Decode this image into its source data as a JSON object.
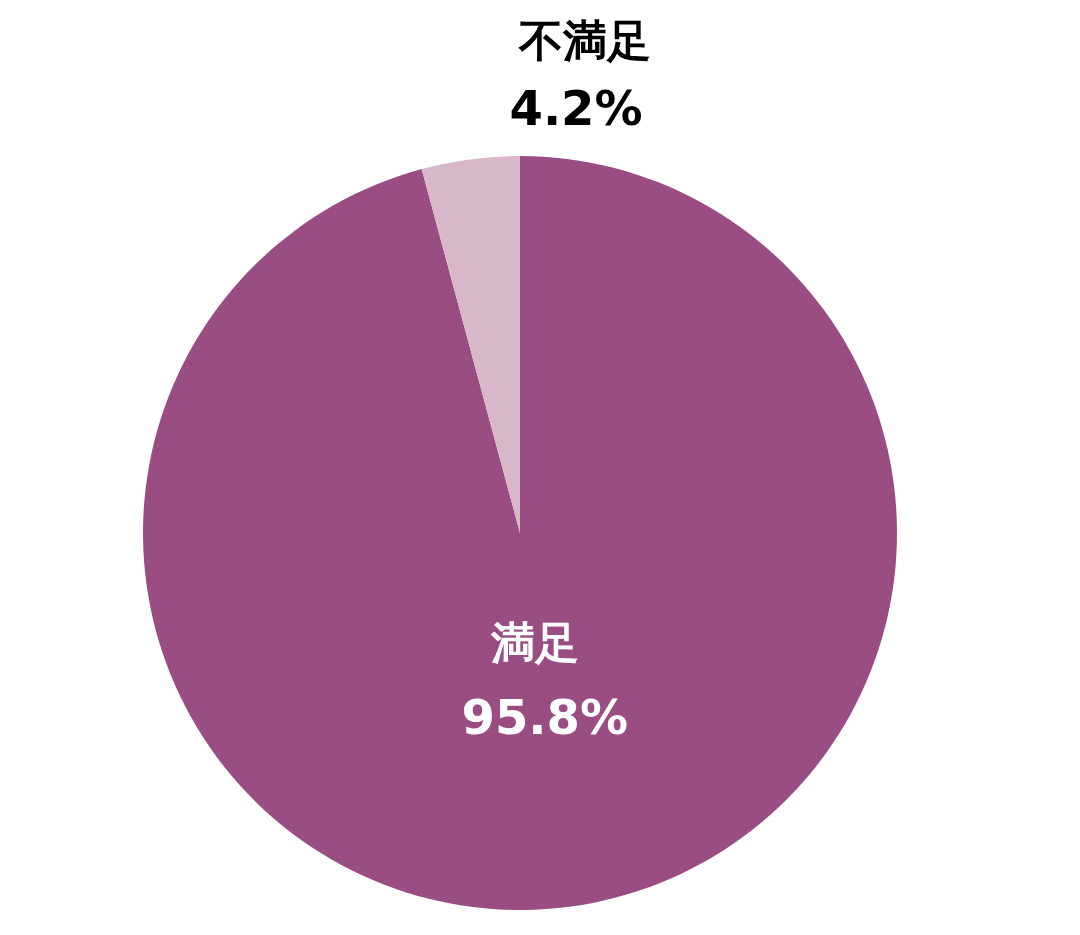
{
  "chart_data": {
    "type": "pie",
    "categories": [
      "満足",
      "不満足"
    ],
    "values": [
      95.8,
      4.2
    ],
    "colors": [
      "#9a4d83",
      "#d8b8c8"
    ],
    "value_labels": [
      "95.8%",
      "4.2%"
    ]
  }
}
